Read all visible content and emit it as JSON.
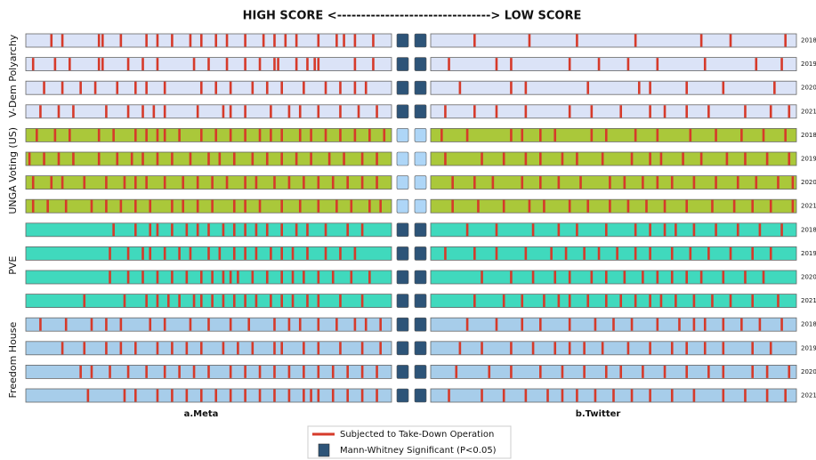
{
  "chart_data": {
    "type": "strip",
    "title": "HIGH SCORE <--------------------------------> LOW SCORE",
    "xlim": [
      0,
      100
    ],
    "panels": [
      "a.Meta",
      "b.Twitter"
    ],
    "take_down_color": "#d63a2a",
    "significant_color": "#2d5478",
    "not_significant_color": "#aed6f7",
    "legend": [
      "Subjected to Take-Down Operation",
      "Mann-Whitney Significant (P<0.05)"
    ],
    "groups": [
      {
        "name": "V-Dem Polyarchy",
        "color": "#dbe3f7",
        "rows": [
          {
            "year": "2018",
            "significant": true,
            "meta": [
              7,
              10,
              20,
              21,
              26,
              33,
              36,
              40,
              45,
              48,
              52,
              55,
              60,
              65,
              68,
              71,
              74,
              80,
              85,
              87,
              90,
              95
            ],
            "twitter": [
              12,
              27,
              40,
              56,
              74,
              82,
              97
            ]
          },
          {
            "year": "2019",
            "significant": true,
            "meta": [
              2,
              8,
              12,
              20,
              21,
              28,
              32,
              36,
              46,
              50,
              55,
              60,
              64,
              68,
              69,
              74,
              77,
              79,
              80,
              90,
              95
            ],
            "twitter": [
              5,
              18,
              22,
              38,
              46,
              54,
              62,
              75,
              89,
              96
            ]
          },
          {
            "year": "2020",
            "significant": true,
            "meta": [
              5,
              10,
              15,
              19,
              25,
              30,
              33,
              38,
              48,
              52,
              56,
              62,
              66,
              70,
              76,
              82,
              86,
              90,
              93
            ],
            "twitter": [
              8,
              22,
              26,
              43,
              57,
              60,
              70,
              80,
              94
            ]
          },
          {
            "year": "2021",
            "significant": true,
            "meta": [
              4,
              9,
              13,
              22,
              28,
              32,
              35,
              38,
              47,
              54,
              56,
              60,
              67,
              72,
              75,
              80,
              86,
              91,
              96
            ],
            "twitter": [
              4,
              12,
              18,
              26,
              38,
              44,
              52,
              60,
              64,
              70,
              76,
              86,
              93,
              98
            ]
          }
        ]
      },
      {
        "name": "UNGA Voting (US)",
        "color": "#aac83a",
        "rows": [
          {
            "year": "2018",
            "significant": false,
            "meta": [
              3,
              8,
              12,
              20,
              24,
              30,
              33,
              36,
              38,
              42,
              48,
              52,
              56,
              60,
              64,
              67,
              70,
              75,
              78,
              82,
              86,
              90,
              94,
              98
            ],
            "twitter": [
              3,
              10,
              22,
              25,
              30,
              34,
              44,
              48,
              56,
              62,
              71,
              78,
              85,
              91,
              97
            ]
          },
          {
            "year": "2019",
            "significant": false,
            "meta": [
              1,
              5,
              9,
              13,
              20,
              25,
              29,
              32,
              36,
              40,
              45,
              50,
              53,
              57,
              62,
              66,
              70,
              74,
              78,
              83,
              87,
              92,
              96
            ],
            "twitter": [
              4,
              14,
              20,
              26,
              30,
              36,
              40,
              47,
              55,
              60,
              63,
              69,
              74,
              81,
              86,
              92,
              98
            ]
          },
          {
            "year": "2020",
            "significant": false,
            "meta": [
              2,
              7,
              10,
              16,
              22,
              27,
              30,
              33,
              38,
              43,
              47,
              51,
              55,
              60,
              63,
              68,
              72,
              76,
              80,
              84,
              88,
              92,
              96
            ],
            "twitter": [
              6,
              12,
              17,
              25,
              30,
              35,
              41,
              49,
              53,
              58,
              62,
              66,
              72,
              78,
              84,
              89,
              95,
              99
            ]
          },
          {
            "year": "2021",
            "significant": false,
            "meta": [
              2,
              6,
              11,
              18,
              22,
              26,
              30,
              34,
              40,
              43,
              47,
              51,
              57,
              60,
              64,
              70,
              75,
              80,
              85,
              89,
              94,
              97
            ],
            "twitter": [
              6,
              13,
              20,
              27,
              31,
              38,
              43,
              49,
              54,
              59,
              64,
              70,
              77,
              83,
              88,
              93,
              99
            ]
          }
        ]
      },
      {
        "name": "PVE",
        "color": "#40d9bd",
        "rows": [
          {
            "year": "2018",
            "significant": true,
            "meta": [
              24,
              30,
              34,
              36,
              40,
              44,
              47,
              50,
              54,
              57,
              60,
              63,
              66,
              70,
              74,
              77,
              82,
              88,
              92
            ],
            "twitter": [
              10,
              18,
              28,
              35,
              40,
              48,
              56,
              60,
              64,
              67,
              72,
              78,
              84,
              90,
              96
            ]
          },
          {
            "year": "2019",
            "significant": true,
            "meta": [
              23,
              28,
              32,
              34,
              38,
              42,
              45,
              50,
              53,
              57,
              60,
              63,
              67,
              70,
              73,
              77,
              82,
              86,
              90
            ],
            "twitter": [
              4,
              12,
              18,
              26,
              33,
              37,
              42,
              46,
              51,
              56,
              60,
              66,
              71,
              76,
              82,
              88,
              93
            ]
          },
          {
            "year": "2020",
            "significant": true,
            "meta": [
              23,
              28,
              32,
              36,
              40,
              44,
              48,
              51,
              54,
              56,
              58,
              62,
              66,
              70,
              73,
              76,
              80,
              84,
              89,
              94
            ],
            "twitter": [
              14,
              22,
              28,
              34,
              38,
              44,
              48,
              53,
              58,
              62,
              66,
              70,
              74,
              80,
              86,
              91
            ]
          },
          {
            "year": "2021",
            "significant": true,
            "meta": [
              16,
              27,
              33,
              36,
              39,
              42,
              46,
              48,
              51,
              54,
              57,
              60,
              63,
              67,
              70,
              73,
              77,
              80,
              86,
              92
            ],
            "twitter": [
              12,
              20,
              25,
              31,
              35,
              38,
              43,
              48,
              52,
              56,
              60,
              63,
              67,
              72,
              77,
              82,
              88,
              95
            ]
          }
        ]
      },
      {
        "name": "Freedom House",
        "color": "#a7cdea",
        "rows": [
          {
            "year": "2018",
            "significant": true,
            "meta": [
              4,
              11,
              18,
              22,
              26,
              34,
              38,
              45,
              50,
              56,
              61,
              68,
              72,
              75,
              80,
              85,
              90,
              93,
              97
            ],
            "twitter": [
              10,
              18,
              25,
              30,
              38,
              45,
              50,
              55,
              62,
              68,
              72,
              75,
              80,
              85,
              90,
              96
            ]
          },
          {
            "year": "2019",
            "significant": true,
            "meta": [
              10,
              16,
              22,
              26,
              30,
              36,
              40,
              44,
              48,
              54,
              58,
              62,
              68,
              70,
              76,
              80,
              86,
              92,
              97
            ],
            "twitter": [
              8,
              14,
              22,
              28,
              34,
              38,
              42,
              47,
              54,
              60,
              66,
              70,
              75,
              80,
              88,
              93
            ]
          },
          {
            "year": "2020",
            "significant": true,
            "meta": [
              15,
              18,
              23,
              28,
              33,
              38,
              42,
              46,
              50,
              56,
              60,
              64,
              68,
              72,
              76,
              80,
              84,
              88,
              92,
              96
            ],
            "twitter": [
              7,
              16,
              22,
              30,
              36,
              42,
              48,
              52,
              58,
              64,
              70,
              76,
              80,
              88,
              92,
              98
            ]
          },
          {
            "year": "2021",
            "significant": true,
            "meta": [
              17,
              27,
              30,
              36,
              40,
              44,
              48,
              52,
              56,
              60,
              64,
              68,
              72,
              76,
              78,
              80,
              84,
              88,
              92,
              96
            ],
            "twitter": [
              5,
              14,
              20,
              26,
              32,
              36,
              40,
              45,
              50,
              55,
              60,
              66,
              72,
              80,
              86,
              92,
              97
            ]
          }
        ]
      }
    ]
  }
}
